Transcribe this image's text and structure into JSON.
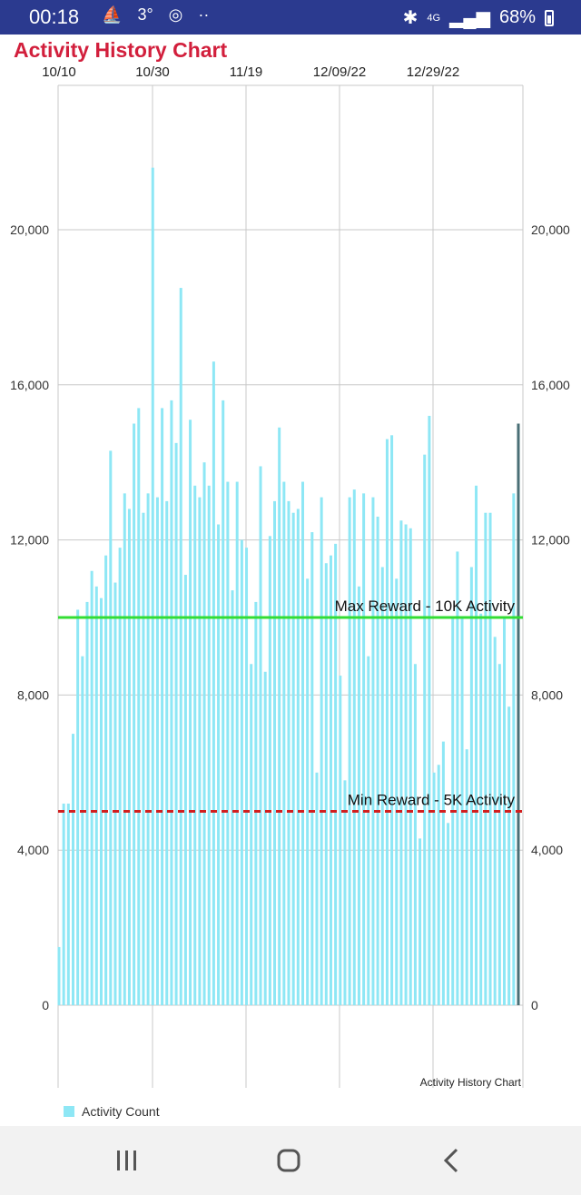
{
  "status_bar": {
    "time": "00:18",
    "icons": [
      "sailing-icon",
      "temperature-icon",
      "instagram-icon",
      "more-dots-icon"
    ],
    "temperature": "3°",
    "right_icons": [
      "bluetooth-icon",
      "4g-icon",
      "signal-icon",
      "battery-icon"
    ],
    "network": "4G",
    "battery": "68%"
  },
  "chart_data": {
    "type": "bar",
    "title": "Activity History Chart",
    "description": "Activity History Chart",
    "x_tick_labels": [
      "10/10",
      "10/30",
      "11/19",
      "12/09/22",
      "12/29/22"
    ],
    "y_ticks": [
      0,
      4000,
      8000,
      12000,
      16000,
      20000
    ],
    "y_tick_labels": [
      "0",
      "4,000",
      "8,000",
      "12,000",
      "16,000",
      "20,000"
    ],
    "ylim": [
      0,
      23500
    ],
    "grid": true,
    "legend": {
      "position": "bottom-left",
      "entries": [
        "Activity Count"
      ]
    },
    "series": [
      {
        "name": "Activity Count",
        "color": "#8ee7f5",
        "values": [
          1500,
          5200,
          5200,
          7000,
          10200,
          9000,
          10400,
          11200,
          10800,
          10500,
          11600,
          14300,
          10900,
          11800,
          13200,
          12800,
          15000,
          15400,
          12700,
          13200,
          21600,
          13100,
          15400,
          13000,
          15600,
          14500,
          18500,
          11100,
          15100,
          13400,
          13100,
          14000,
          13400,
          16600,
          12400,
          15600,
          13500,
          10700,
          13500,
          12000,
          11800,
          8800,
          10400,
          13900,
          8600,
          12100,
          13000,
          14900,
          13500,
          13000,
          12700,
          12800,
          13500,
          11000,
          12200,
          6000,
          13100,
          11400,
          11600,
          11900,
          8500,
          5800,
          13100,
          13300,
          10800,
          13200,
          9000,
          13100,
          12600,
          11300,
          14600,
          14700,
          11000,
          12500,
          12400,
          12300,
          8800,
          4300,
          14200,
          15200,
          6000,
          6200,
          6800,
          4700,
          10000,
          11700,
          10000,
          6600,
          11300,
          13400,
          10100,
          12700,
          12700,
          9500,
          8800,
          10000,
          7700,
          13200,
          15000
        ]
      }
    ],
    "reference_lines": [
      {
        "label": "Max Reward - 10K Activity",
        "value": 10000,
        "color": "#33dd33",
        "style": "solid"
      },
      {
        "label": "Min Reward - 5K Activity",
        "value": 5000,
        "color": "#d21f1f",
        "style": "dashed"
      }
    ],
    "highlight_last_bar_color": "#4a6f76"
  },
  "nav_bar": {
    "recent_icon": "recent-apps-icon",
    "home_icon": "home-icon",
    "back_icon": "back-icon"
  }
}
